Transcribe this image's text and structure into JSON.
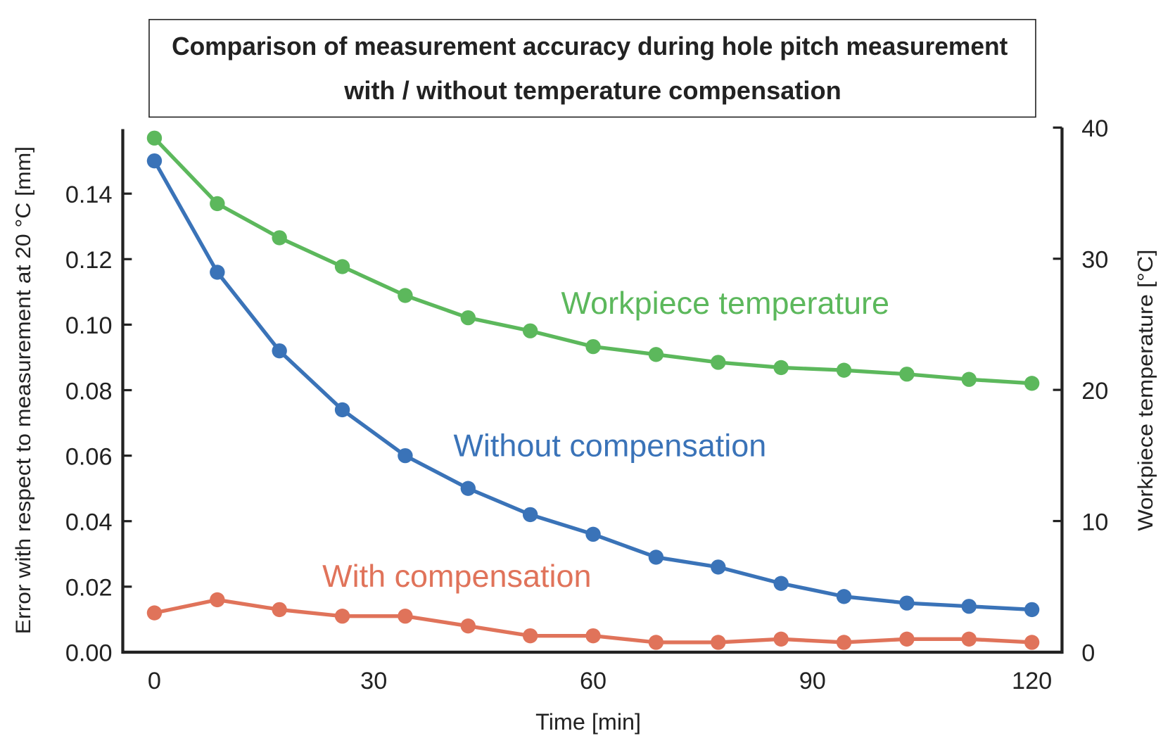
{
  "chart_data": {
    "type": "line",
    "title_lines": [
      "Comparison of measurement accuracy during hole pitch measurement",
      "with / without temperature compensation"
    ],
    "xlabel": "Time [min]",
    "ylabel": "Error with respect to measurement at 20 °C [mm]",
    "y2label": "Workpiece temperature [°C]",
    "xlim": [
      0,
      120
    ],
    "ylim": [
      0,
      0.16
    ],
    "y2lim": [
      0,
      40
    ],
    "xticks": [
      "0",
      "30",
      "60",
      "90",
      "120"
    ],
    "yticks": [
      "0.00",
      "0.02",
      "0.04",
      "0.06",
      "0.08",
      "0.10",
      "0.12",
      "0.14"
    ],
    "y2ticks": [
      "0",
      "10",
      "20",
      "30",
      "40"
    ],
    "grid": false,
    "x": [
      0,
      8.6,
      17.1,
      25.7,
      34.3,
      42.9,
      51.4,
      60,
      68.6,
      77.1,
      85.7,
      94.3,
      102.9,
      111.4,
      120
    ],
    "series": [
      {
        "name": "Workpiece temperature",
        "axis": "right",
        "color": "#5cb85c",
        "values": [
          39.2,
          34.2,
          31.6,
          29.4,
          27.2,
          25.5,
          24.5,
          23.3,
          22.7,
          22.1,
          21.7,
          21.5,
          21.2,
          20.8,
          20.5
        ]
      },
      {
        "name": "Without compensation",
        "axis": "left",
        "color": "#3a73b8",
        "values": [
          0.15,
          0.116,
          0.092,
          0.074,
          0.06,
          0.05,
          0.042,
          0.036,
          0.029,
          0.026,
          0.021,
          0.017,
          0.015,
          0.014,
          0.013
        ]
      },
      {
        "name": "With compensation",
        "axis": "left",
        "color": "#e0735a",
        "values": [
          0.012,
          0.016,
          0.013,
          0.011,
          0.011,
          0.008,
          0.005,
          0.005,
          0.003,
          0.003,
          0.004,
          0.003,
          0.004,
          0.004,
          0.003
        ]
      }
    ]
  }
}
